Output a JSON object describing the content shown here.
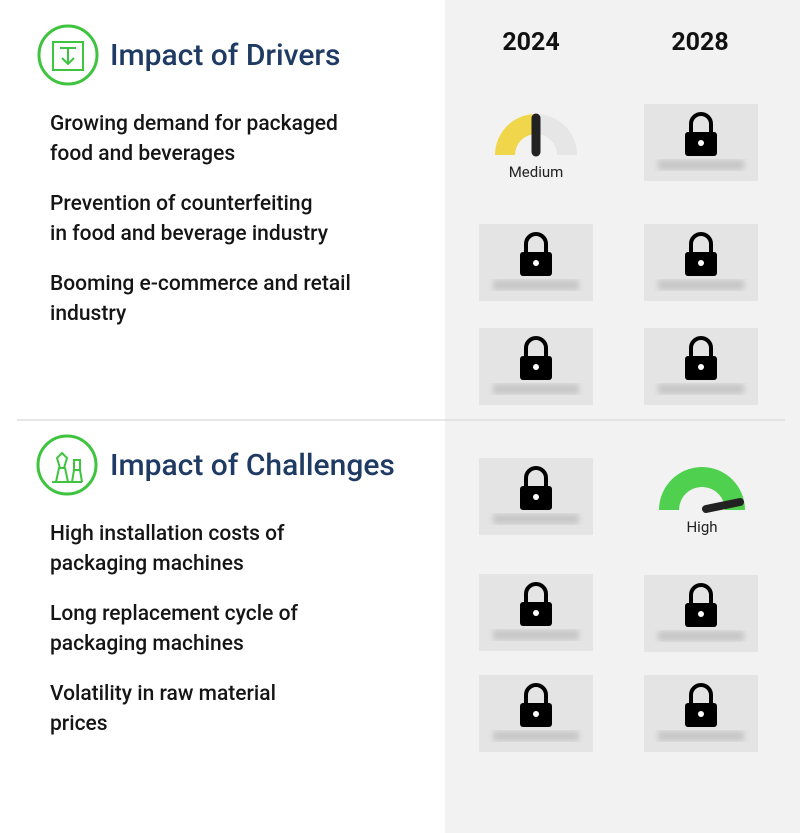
{
  "header": {
    "years": [
      "2024",
      "2028"
    ]
  },
  "drivers": {
    "title": "Impact of Drivers",
    "items": [
      {
        "lines": [
          "Growing demand for packaged",
          "food and beverages"
        ],
        "gauge_2024": "Medium"
      },
      {
        "lines": [
          "Prevention of counterfeiting",
          "in food and beverage industry"
        ]
      },
      {
        "lines": [
          "Booming e-commerce and retail",
          "industry"
        ]
      }
    ]
  },
  "challenges": {
    "title": "Impact of Challenges",
    "items": [
      {
        "lines": [
          "High installation costs of",
          "packaging machines"
        ],
        "gauge_2028": "High"
      },
      {
        "lines": [
          "Long replacement cycle of",
          "packaging machines"
        ]
      },
      {
        "lines": [
          "Volatility in raw material",
          "prices"
        ]
      }
    ]
  }
}
